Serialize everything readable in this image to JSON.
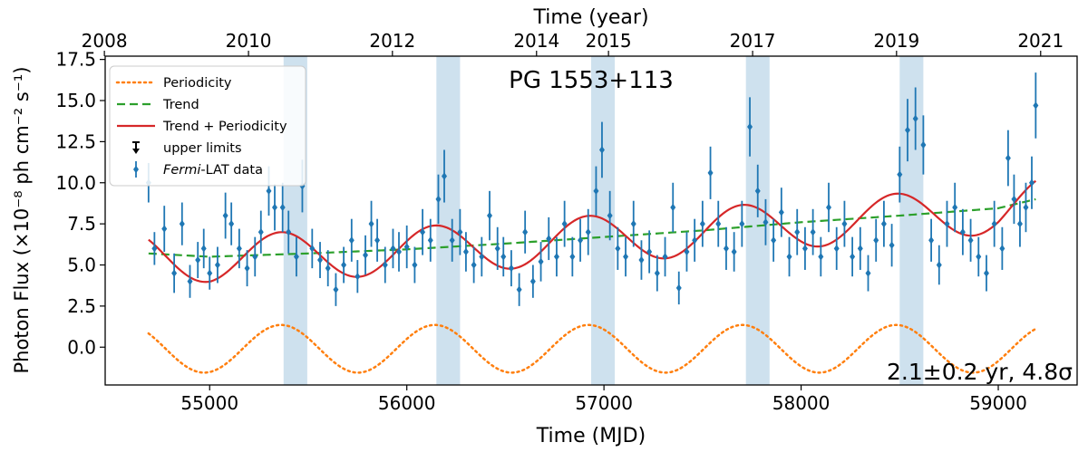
{
  "chart_data": {
    "type": "scatter",
    "title": "PG 1553+113",
    "xlabel": "Time (MJD)",
    "top_xlabel": "Time (year)",
    "ylabel": "Photon Flux  (×10⁻⁸ ph cm⁻² s⁻¹)",
    "xlim": [
      54470,
      59400
    ],
    "ylim": [
      -2.3,
      17.7
    ],
    "x_ticks": [
      55000,
      56000,
      57000,
      58000,
      59000
    ],
    "x_tick_labels": [
      "55000",
      "56000",
      "57000",
      "58000",
      "59000"
    ],
    "y_ticks": [
      0.0,
      2.5,
      5.0,
      7.5,
      10.0,
      12.5,
      15.0,
      17.5
    ],
    "y_tick_labels": [
      "0.0",
      "2.5",
      "5.0",
      "7.5",
      "10.0",
      "12.5",
      "15.0",
      "17.5"
    ],
    "top_ticks": [
      {
        "label": "2008",
        "mjd": 54466
      },
      {
        "label": "2010",
        "mjd": 55197
      },
      {
        "label": "2012",
        "mjd": 55927
      },
      {
        "label": "2014",
        "mjd": 56658
      },
      {
        "label": "2015",
        "mjd": 57023
      },
      {
        "label": "2017",
        "mjd": 57754
      },
      {
        "label": "2019",
        "mjd": 58484
      },
      {
        "label": "2021",
        "mjd": 59215
      }
    ],
    "annotation": "2.1±0.2 yr, 4.8σ",
    "legend": {
      "placement": "top-left",
      "entries": [
        {
          "label": "Periodicity",
          "style": "dotted",
          "color": "#ff7f0e"
        },
        {
          "label": "Trend",
          "style": "dashed",
          "color": "#2ca02c"
        },
        {
          "label": "Trend + Periodicity",
          "style": "solid",
          "color": "#d62728"
        },
        {
          "label": "upper limits",
          "style": "arrow",
          "color": "#000000"
        },
        {
          "label_italic": "Fermi",
          "label": "-LAT data",
          "style": "errorbar",
          "color": "#1f77b4"
        }
      ]
    },
    "colors": {
      "data": "#1f77b4",
      "periodicity": "#ff7f0e",
      "trend": "#2ca02c",
      "combined": "#d62728",
      "bands": "#aecde3"
    },
    "highlight_bands": [
      [
        55375,
        55495
      ],
      [
        56150,
        56270
      ],
      [
        56935,
        57055
      ],
      [
        57720,
        57840
      ],
      [
        58500,
        58620
      ]
    ],
    "model": {
      "period_days": 780,
      "periodicity_peaks": [
        55362,
        56170,
        56950,
        57750,
        58550
      ],
      "periodicity_amplitude": 1.45,
      "periodicity_offset": -0.1,
      "x_range": [
        54690,
        59190
      ],
      "trend_points": [
        [
          54690,
          5.7
        ],
        [
          55000,
          5.5
        ],
        [
          55500,
          5.7
        ],
        [
          56000,
          5.95
        ],
        [
          56500,
          6.3
        ],
        [
          57000,
          6.7
        ],
        [
          57500,
          7.1
        ],
        [
          58000,
          7.6
        ],
        [
          58500,
          8.0
        ],
        [
          59000,
          8.45
        ],
        [
          59190,
          9.0
        ]
      ]
    },
    "series": [
      {
        "name": "Fermi-LAT data",
        "x": [
          54690,
          54720,
          54770,
          54820,
          54860,
          54900,
          54940,
          54970,
          55000,
          55040,
          55080,
          55110,
          55150,
          55190,
          55230,
          55260,
          55300,
          55330,
          55370,
          55400,
          55440,
          55470,
          55520,
          55560,
          55600,
          55640,
          55680,
          55720,
          55750,
          55790,
          55820,
          55850,
          55890,
          55930,
          55960,
          56000,
          56040,
          56080,
          56120,
          56160,
          56190,
          56230,
          56270,
          56300,
          56340,
          56380,
          56420,
          56460,
          56490,
          56530,
          56570,
          56600,
          56640,
          56680,
          56720,
          56760,
          56800,
          56840,
          56880,
          56920,
          56960,
          56990,
          57030,
          57070,
          57110,
          57150,
          57190,
          57230,
          57270,
          57310,
          57350,
          57380,
          57420,
          57460,
          57500,
          57540,
          57580,
          57620,
          57660,
          57700,
          57740,
          57780,
          57820,
          57860,
          57900,
          57940,
          57980,
          58020,
          58060,
          58100,
          58140,
          58180,
          58220,
          58260,
          58300,
          58340,
          58380,
          58420,
          58460,
          58500,
          58540,
          58580,
          58620,
          58660,
          58700,
          58740,
          58780,
          58820,
          58860,
          58900,
          58940,
          58980,
          59020,
          59050,
          59080,
          59110,
          59140,
          59170,
          59190
        ],
        "y": [
          10.0,
          6.0,
          7.2,
          4.5,
          7.5,
          4.0,
          5.3,
          6.0,
          4.5,
          5.0,
          8.0,
          7.5,
          6.0,
          4.8,
          5.5,
          7.0,
          9.5,
          8.5,
          8.5,
          7.0,
          5.5,
          9.8,
          6.0,
          5.3,
          4.8,
          3.5,
          5.0,
          6.5,
          4.3,
          5.6,
          7.5,
          6.5,
          5.0,
          6.0,
          5.8,
          6.1,
          5.0,
          7.0,
          6.5,
          9.0,
          10.4,
          6.5,
          7.0,
          5.8,
          5.0,
          5.5,
          8.0,
          6.0,
          5.5,
          4.8,
          3.5,
          7.0,
          4.0,
          5.2,
          6.6,
          5.5,
          7.5,
          5.5,
          6.5,
          7.0,
          9.5,
          12.0,
          8.0,
          6.0,
          5.5,
          7.5,
          5.3,
          5.8,
          4.5,
          5.5,
          8.5,
          3.6,
          5.8,
          6.5,
          7.5,
          10.6,
          7.5,
          6.0,
          5.8,
          7.5,
          13.4,
          9.5,
          7.6,
          6.5,
          8.2,
          5.5,
          7.0,
          6.0,
          7.0,
          5.5,
          8.5,
          6.0,
          7.5,
          5.5,
          6.0,
          4.5,
          6.5,
          7.5,
          6.2,
          10.5,
          13.2,
          13.9,
          12.3,
          6.5,
          5.0,
          7.5,
          8.5,
          7.0,
          6.5,
          5.5,
          4.5,
          7.5,
          6.0,
          11.5,
          9.0,
          7.5,
          8.5,
          10.0,
          14.7
        ],
        "yerr": [
          1.2,
          1.0,
          1.4,
          1.2,
          1.3,
          1.0,
          1.1,
          1.2,
          1.0,
          1.1,
          1.4,
          1.3,
          1.2,
          1.1,
          1.2,
          1.3,
          1.5,
          1.4,
          1.5,
          1.3,
          1.2,
          1.6,
          1.2,
          1.1,
          1.1,
          1.0,
          1.1,
          1.3,
          1.0,
          1.2,
          1.4,
          1.3,
          1.1,
          1.2,
          1.2,
          1.3,
          1.1,
          1.4,
          1.3,
          1.5,
          1.6,
          1.3,
          1.4,
          1.2,
          1.1,
          1.2,
          1.5,
          1.3,
          1.2,
          1.1,
          1.0,
          1.3,
          1.0,
          1.2,
          1.3,
          1.2,
          1.4,
          1.2,
          1.3,
          1.4,
          1.5,
          1.7,
          1.5,
          1.3,
          1.2,
          1.4,
          1.2,
          1.3,
          1.1,
          1.2,
          1.5,
          1.0,
          1.2,
          1.3,
          1.4,
          1.6,
          1.4,
          1.3,
          1.2,
          1.4,
          1.8,
          1.6,
          1.4,
          1.3,
          1.5,
          1.2,
          1.4,
          1.3,
          1.4,
          1.2,
          1.5,
          1.3,
          1.4,
          1.2,
          1.3,
          1.1,
          1.3,
          1.4,
          1.3,
          1.7,
          1.9,
          1.9,
          1.8,
          1.3,
          1.2,
          1.4,
          1.5,
          1.4,
          1.3,
          1.2,
          1.1,
          1.4,
          1.3,
          1.7,
          1.5,
          1.4,
          1.5,
          1.6,
          2.0
        ]
      }
    ]
  }
}
